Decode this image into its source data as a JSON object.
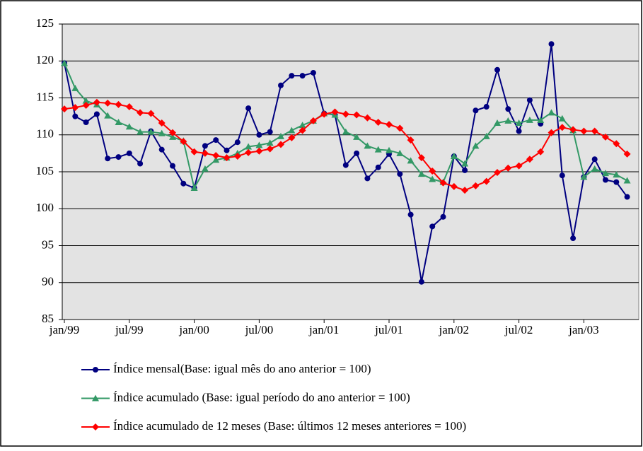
{
  "chart_data": {
    "type": "line",
    "categories": [
      "jan/99",
      null,
      null,
      null,
      null,
      null,
      "jul/99",
      null,
      null,
      null,
      null,
      null,
      "jan/00",
      null,
      null,
      null,
      null,
      null,
      "jul/00",
      null,
      null,
      null,
      null,
      null,
      "jan/01",
      null,
      null,
      null,
      null,
      null,
      "jul/01",
      null,
      null,
      null,
      null,
      null,
      "jan/02",
      null,
      null,
      null,
      null,
      null,
      "jul/02",
      null,
      null,
      null,
      null,
      null,
      "jan/03",
      null,
      null,
      null,
      null
    ],
    "ylim": [
      85,
      125
    ],
    "yticks": [
      85,
      90,
      95,
      100,
      105,
      110,
      115,
      120,
      125
    ],
    "grid": true,
    "legend": "bottom",
    "series": [
      {
        "name": "Índice mensal(Base: igual mês do ano anterior = 100)",
        "color": "#000080",
        "marker": "circle",
        "values": [
          119.7,
          112.5,
          111.7,
          112.8,
          106.8,
          107.0,
          107.5,
          106.1,
          110.5,
          108.0,
          105.8,
          103.4,
          102.8,
          108.5,
          109.3,
          107.9,
          109.0,
          113.6,
          110.0,
          110.4,
          116.7,
          118.0,
          118.0,
          118.4,
          112.9,
          112.7,
          105.9,
          107.5,
          104.1,
          105.6,
          107.4,
          104.7,
          99.2,
          90.1,
          97.6,
          98.9,
          107.1,
          105.2,
          113.3,
          113.8,
          118.8,
          113.5,
          110.5,
          114.7,
          111.5,
          122.3,
          104.5,
          96.0,
          104.3,
          106.7,
          103.9,
          103.6,
          101.6
        ]
      },
      {
        "name": "Índice acumulado (Base: igual período do ano anterior = 100)",
        "color": "#339966",
        "marker": "triangle",
        "values": [
          119.7,
          116.3,
          114.6,
          114.1,
          112.6,
          111.7,
          111.1,
          110.4,
          110.4,
          110.2,
          109.7,
          109.2,
          102.8,
          105.4,
          106.6,
          106.9,
          107.5,
          108.4,
          108.6,
          108.9,
          109.8,
          110.6,
          111.3,
          111.9,
          112.9,
          112.7,
          110.4,
          109.7,
          108.5,
          108.0,
          107.9,
          107.5,
          106.5,
          104.7,
          104.0,
          103.6,
          107.1,
          106.1,
          108.5,
          109.8,
          111.6,
          111.9,
          111.6,
          112.0,
          112.0,
          113.0,
          112.2,
          110.6,
          104.3,
          105.4,
          104.8,
          104.6,
          103.8
        ]
      },
      {
        "name": "Índice acumulado de 12 meses (Base: últimos 12 meses anteriores = 100)",
        "color": "#ff0000",
        "marker": "diamond",
        "values": [
          113.5,
          113.7,
          114.0,
          114.4,
          114.3,
          114.1,
          113.8,
          113.0,
          112.9,
          111.6,
          110.3,
          109.1,
          107.7,
          107.5,
          107.2,
          106.9,
          107.1,
          107.6,
          107.8,
          108.1,
          108.7,
          109.6,
          110.6,
          111.9,
          112.8,
          113.1,
          112.8,
          112.7,
          112.3,
          111.7,
          111.4,
          110.9,
          109.3,
          106.9,
          105.1,
          103.5,
          103.0,
          102.5,
          103.1,
          103.7,
          104.9,
          105.5,
          105.8,
          106.7,
          107.7,
          110.3,
          111.0,
          110.7,
          110.5,
          110.5,
          109.7,
          108.8,
          107.4
        ]
      }
    ]
  }
}
